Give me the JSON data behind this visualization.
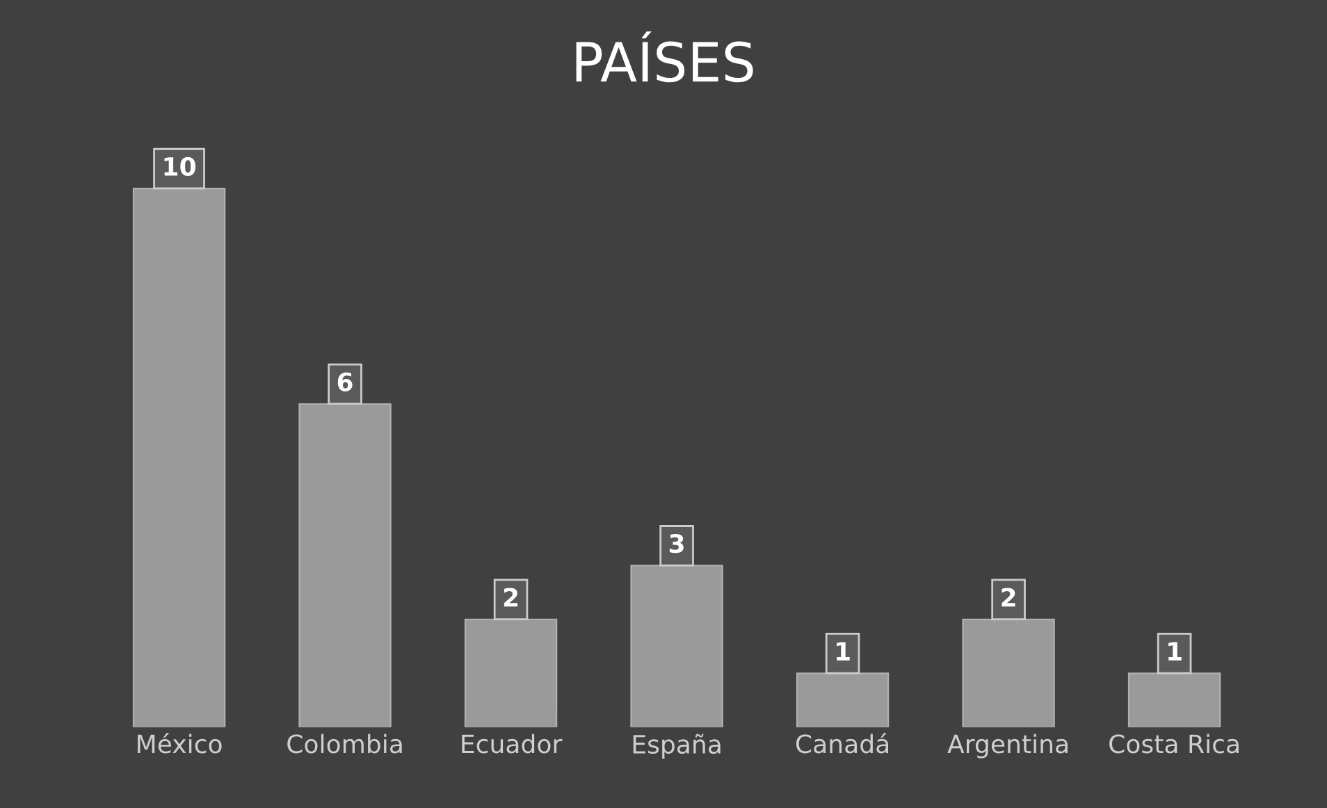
{
  "chart_data": {
    "type": "bar",
    "title": "PAÍSES",
    "categories": [
      "México",
      "Colombia",
      "Ecuador",
      "España",
      "Canadá",
      "Argentina",
      "Costa Rica"
    ],
    "values": [
      10,
      6,
      2,
      3,
      1,
      2,
      1
    ],
    "color": "#9a9a9a",
    "data_labels": true,
    "grid": false
  }
}
